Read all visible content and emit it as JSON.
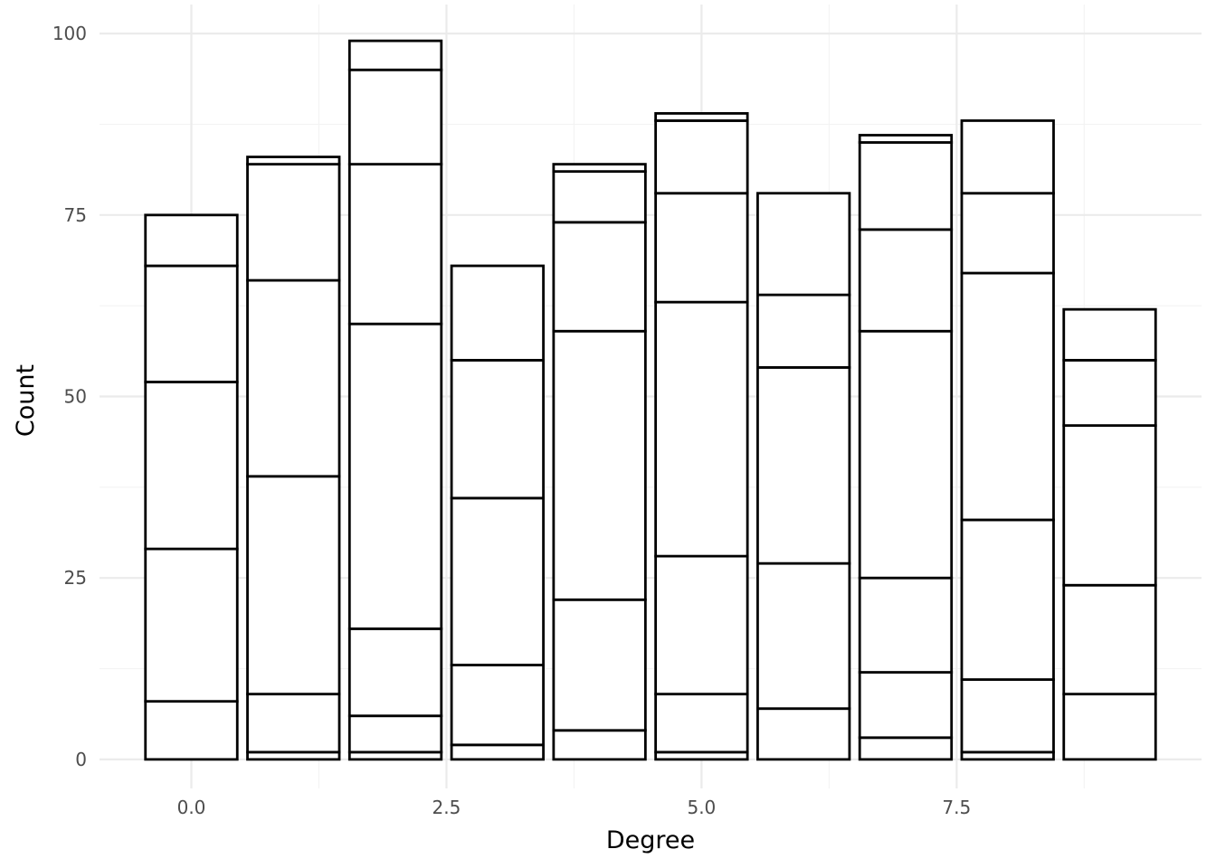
{
  "chart_data": {
    "type": "bar",
    "stacked": true,
    "title": "",
    "xlabel": "Degree",
    "ylabel": "Count",
    "x": [
      0,
      1,
      2,
      3,
      4,
      5,
      6,
      7,
      8,
      9
    ],
    "xlim": [
      -0.9,
      9.9
    ],
    "ylim": [
      -4,
      104
    ],
    "x_ticks": [
      0,
      2.5,
      5,
      7.5
    ],
    "x_tick_labels": [
      "0.0",
      "2.5",
      "5.0",
      "7.5"
    ],
    "y_ticks": [
      0,
      25,
      50,
      75,
      100
    ],
    "y_tick_labels": [
      "0",
      "25",
      "50",
      "75",
      "100"
    ],
    "grid": true,
    "legend": "none",
    "stack_boundaries": [
      [
        0,
        8,
        29,
        52,
        68,
        75
      ],
      [
        0,
        1,
        9,
        39,
        66,
        82,
        83
      ],
      [
        0,
        1,
        6,
        18,
        60,
        82,
        95,
        99
      ],
      [
        0,
        2,
        13,
        36,
        55,
        68
      ],
      [
        0,
        4,
        22,
        59,
        74,
        81,
        82
      ],
      [
        0,
        1,
        9,
        28,
        63,
        78,
        88,
        89
      ],
      [
        0,
        7,
        27,
        54,
        64,
        78
      ],
      [
        0,
        3,
        12,
        25,
        59,
        73,
        85,
        86
      ],
      [
        0,
        1,
        11,
        33,
        67,
        78,
        88
      ],
      [
        0,
        9,
        24,
        46,
        55,
        62
      ]
    ],
    "totals": [
      75,
      83,
      99,
      68,
      82,
      89,
      78,
      86,
      88,
      62
    ],
    "colors": {
      "bar_fill": "#ffffff",
      "bar_outline": "#000000",
      "grid": "#ebebeb",
      "text": "#4d4d4d"
    }
  }
}
